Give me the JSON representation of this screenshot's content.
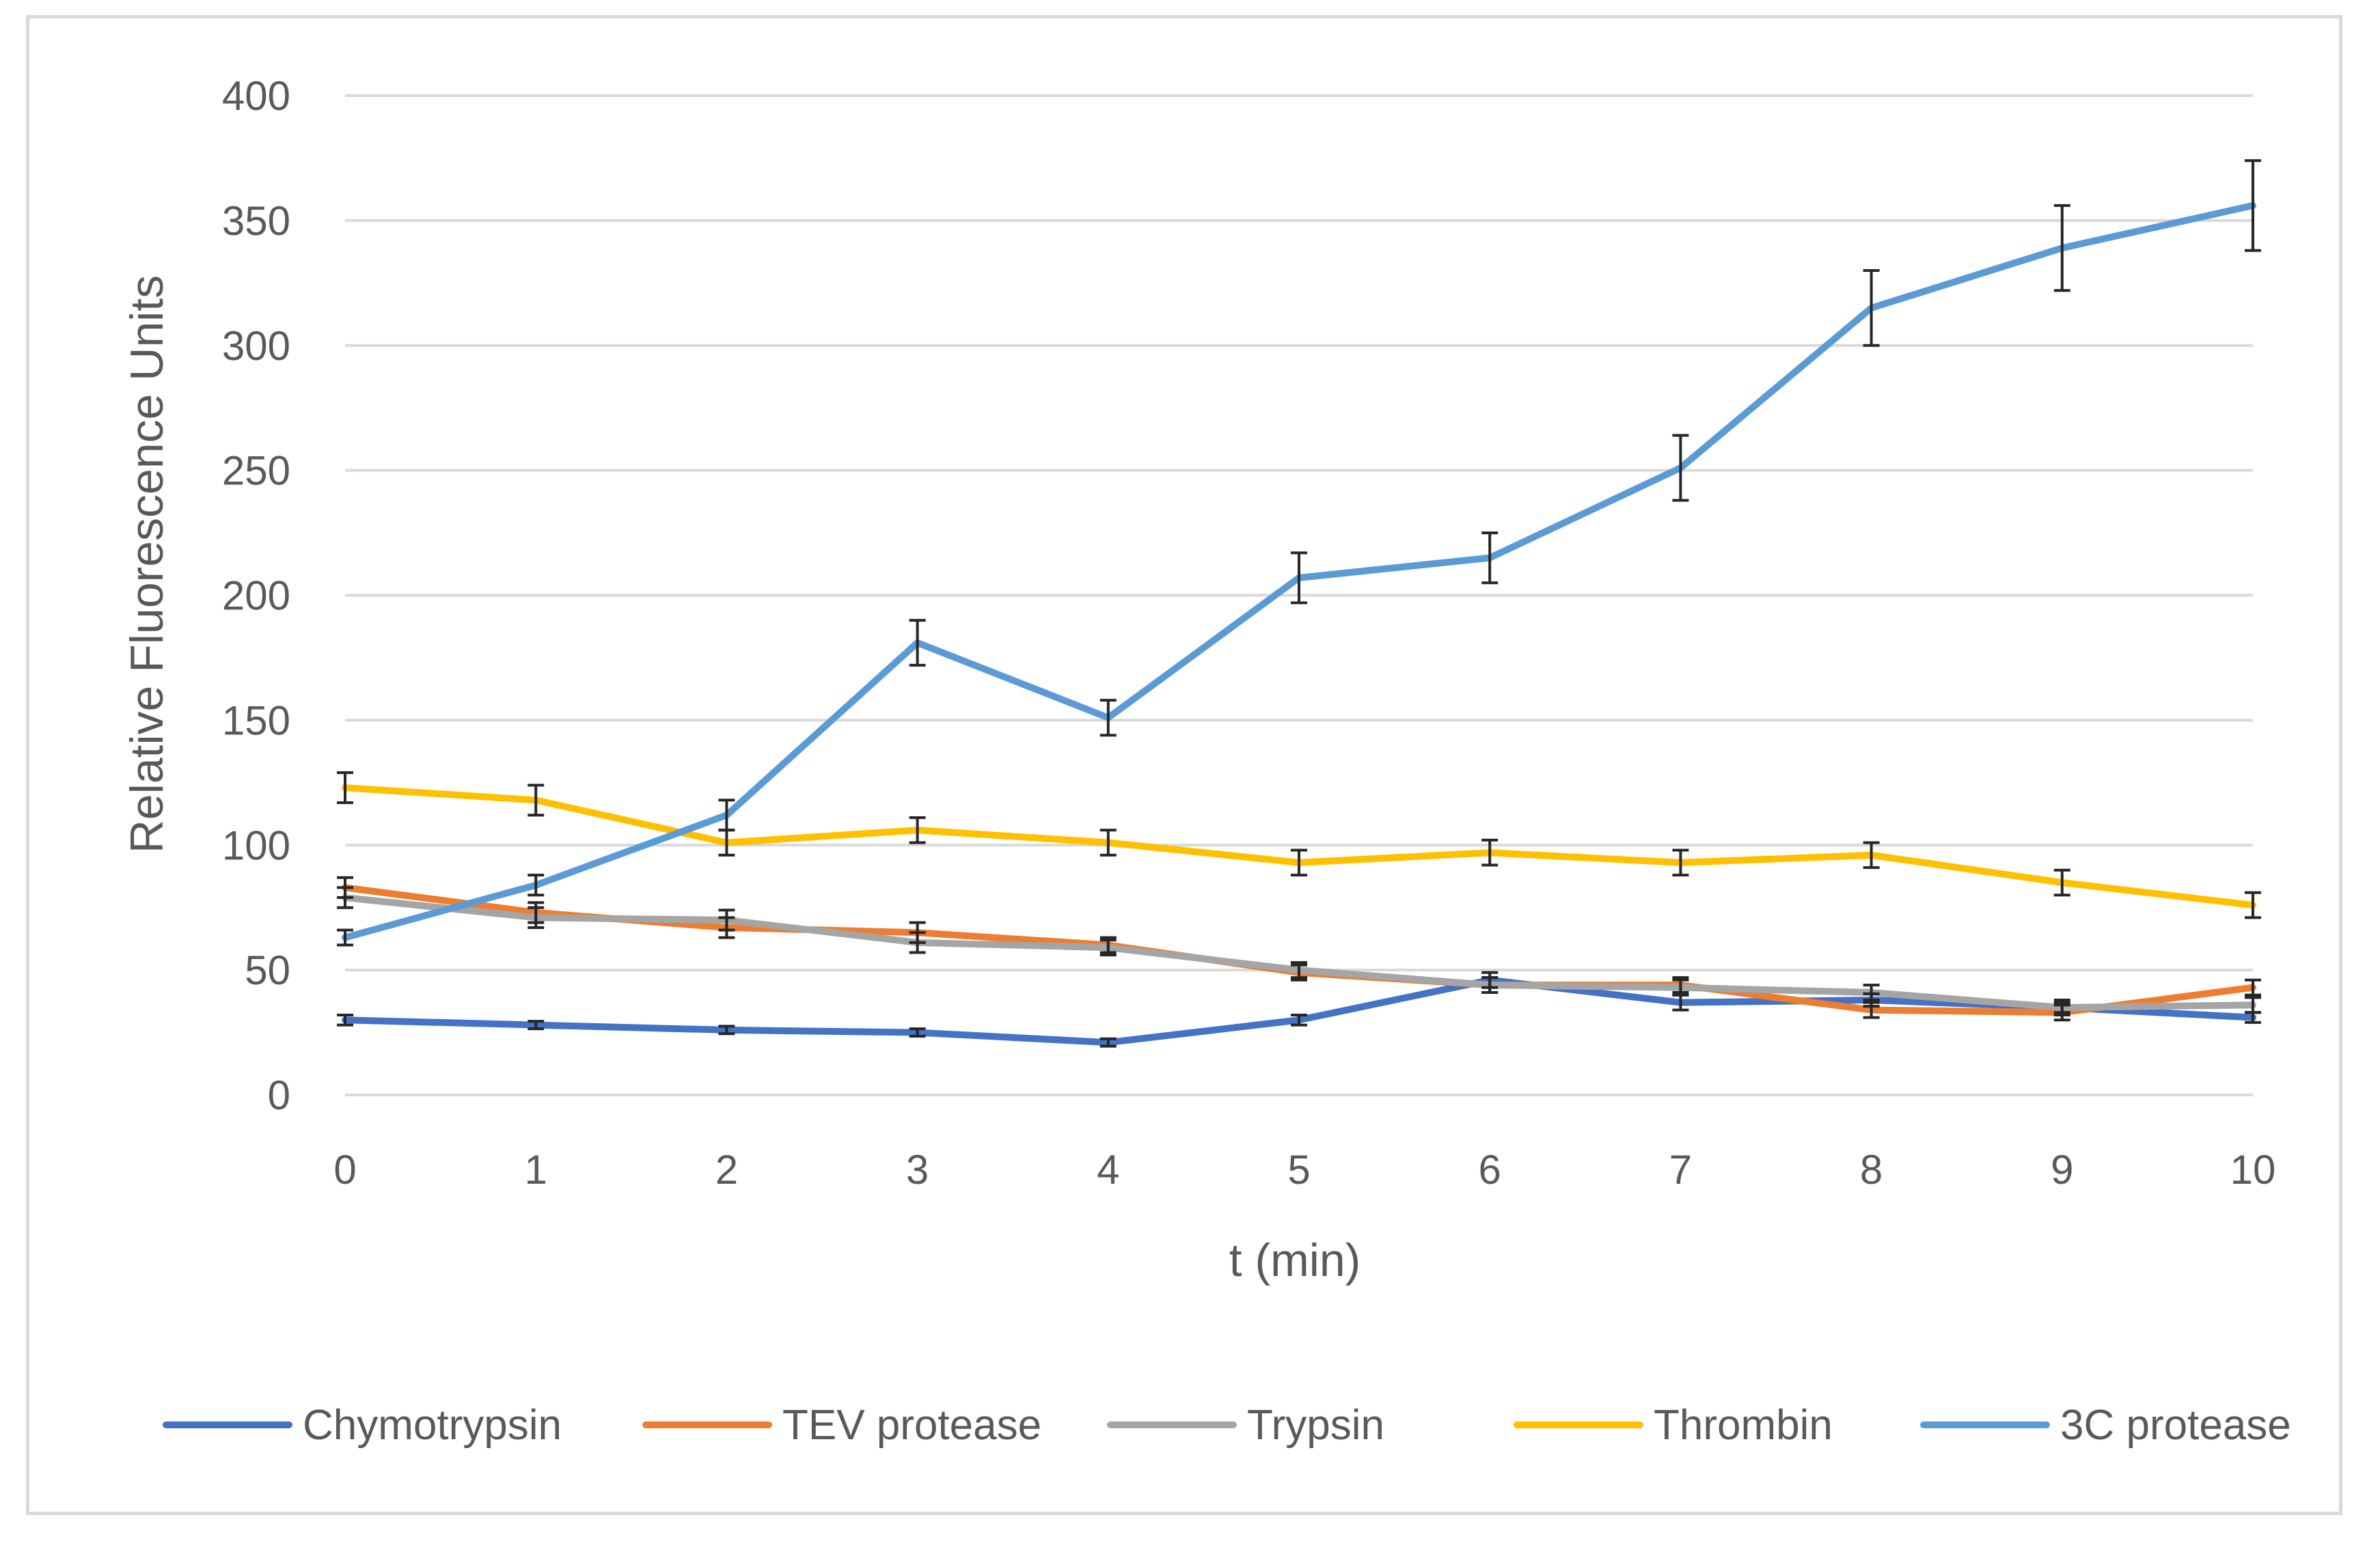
{
  "chart_data": {
    "type": "line",
    "title": "",
    "xlabel": "t (min)",
    "ylabel": "Relative Fluorescence Units",
    "x": [
      0,
      1,
      2,
      3,
      4,
      5,
      6,
      7,
      8,
      9,
      10
    ],
    "xlim": [
      0,
      10
    ],
    "ylim": [
      0,
      400
    ],
    "yticks": [
      0,
      50,
      100,
      150,
      200,
      250,
      300,
      350,
      400
    ],
    "grid": "horizontal",
    "legend_position": "bottom",
    "series": [
      {
        "name": "Chymotrypsin",
        "color": "#4472c4",
        "values": [
          30,
          28,
          26,
          25,
          21,
          30,
          46,
          37,
          38,
          35,
          31
        ],
        "errors": [
          2,
          1.5,
          1.5,
          1.5,
          1.5,
          2,
          3,
          3,
          2.5,
          2,
          2
        ]
      },
      {
        "name": "TEV protease",
        "color": "#ed7d31",
        "values": [
          83,
          73,
          67,
          65,
          60,
          49,
          44,
          44,
          34,
          33,
          43
        ],
        "errors": [
          4,
          4,
          4,
          4,
          3,
          3,
          3,
          3,
          3,
          3,
          3
        ]
      },
      {
        "name": "Trypsin",
        "color": "#a5a5a5",
        "values": [
          79,
          71,
          70,
          61,
          59,
          50,
          44,
          43,
          41,
          35,
          36
        ],
        "errors": [
          4,
          4,
          4,
          4,
          3,
          3,
          3,
          3,
          3,
          3,
          3
        ]
      },
      {
        "name": "Thrombin",
        "color": "#ffc000",
        "values": [
          123,
          118,
          101,
          106,
          101,
          93,
          97,
          93,
          96,
          85,
          76
        ],
        "errors": [
          6,
          6,
          5,
          5,
          5,
          5,
          5,
          5,
          5,
          5,
          5
        ]
      },
      {
        "name": "3C protease",
        "color": "#5b9bd5",
        "values": [
          63,
          84,
          112,
          181,
          151,
          207,
          215,
          251,
          315,
          339,
          356
        ],
        "errors": [
          3,
          4,
          6,
          9,
          7,
          10,
          10,
          13,
          15,
          17,
          18
        ]
      }
    ]
  }
}
